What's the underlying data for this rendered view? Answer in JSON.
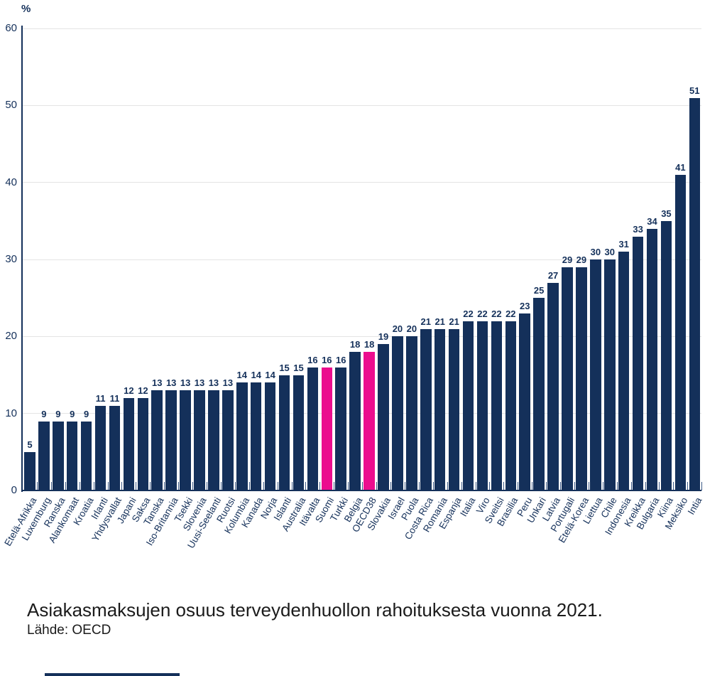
{
  "caption": {
    "title": "Asiakasmaksujen osuus terveydenhuollon rahoituksesta vuonna 2021.",
    "source": "Lähde: OECD"
  },
  "chart_data": {
    "type": "bar",
    "ylabel": "%",
    "ylim": [
      0,
      60
    ],
    "yticks": [
      0,
      10,
      20,
      30,
      40,
      50,
      60
    ],
    "grid": true,
    "legend": "none",
    "categories": [
      "Etelä-Afrikka",
      "Luxemburg",
      "Ranska",
      "Alankomaat",
      "Kroatia",
      "Irlanti",
      "Yhdysvallat",
      "Japani",
      "Saksa",
      "Tanska",
      "Iso-Britannia",
      "Tsekki",
      "Slovenia",
      "Uusi-Seelanti",
      "Ruotsi",
      "Kolumbia",
      "Kanada",
      "Norja",
      "Islanti",
      "Australia",
      "Itävalta",
      "Suomi",
      "Turkki",
      "Belgia",
      "OECD38",
      "Slovakia",
      "Israel",
      "Puola",
      "Costa Rica",
      "Romania",
      "Espanja",
      "Italia",
      "Viro",
      "Sveitsi",
      "Brasilia",
      "Peru",
      "Unkari",
      "Latvia",
      "Portugali",
      "Etelä-Korea",
      "Liettua",
      "Chile",
      "Indonesia",
      "Kreikka",
      "Bulgaria",
      "Kiina",
      "Meksiko",
      "Intia"
    ],
    "values": [
      5,
      9,
      9,
      9,
      9,
      11,
      11,
      12,
      12,
      13,
      13,
      13,
      13,
      13,
      13,
      14,
      14,
      14,
      15,
      15,
      16,
      16,
      16,
      18,
      18,
      19,
      20,
      20,
      21,
      21,
      21,
      22,
      22,
      22,
      22,
      23,
      25,
      27,
      29,
      29,
      30,
      30,
      31,
      33,
      34,
      35,
      41,
      51
    ],
    "highlighted_categories": [
      "Suomi",
      "OECD38"
    ],
    "colors": {
      "bar": "#14305a",
      "highlight": "#EB0D8E",
      "axis": "#14305a",
      "tick": "#3d5a87",
      "grid": "#e4e4e4",
      "text": "#14305a"
    }
  }
}
